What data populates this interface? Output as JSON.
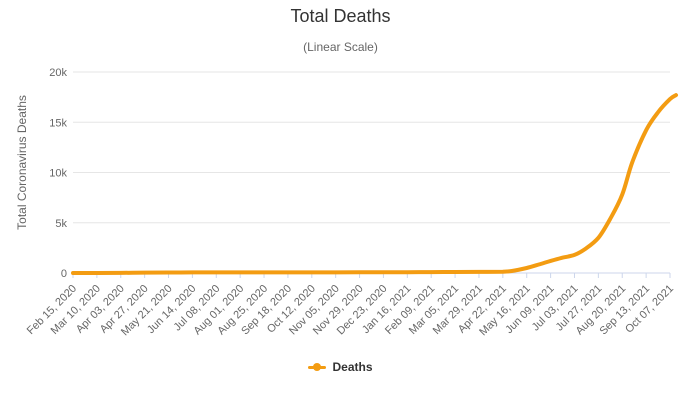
{
  "chart_data": {
    "type": "line",
    "title": "Total Deaths",
    "subtitle": "(Linear Scale)",
    "ylabel": "Total Coronavirus Deaths",
    "xlabel": "",
    "ylim": [
      0,
      20000
    ],
    "y_ticks": [
      "0",
      "5k",
      "10k",
      "15k",
      "20k"
    ],
    "y_tick_values": [
      0,
      5000,
      10000,
      15000,
      20000
    ],
    "categories": [
      "Feb 15, 2020",
      "Mar 10, 2020",
      "Apr 03, 2020",
      "Apr 27, 2020",
      "May 21, 2020",
      "Jun 14, 2020",
      "Jul 08, 2020",
      "Aug 01, 2020",
      "Aug 25, 2020",
      "Sep 18, 2020",
      "Oct 12, 2020",
      "Nov 05, 2020",
      "Nov 29, 2020",
      "Dec 23, 2020",
      "Jan 16, 2021",
      "Feb 09, 2021",
      "Mar 05, 2021",
      "Mar 29, 2021",
      "Apr 22, 2021",
      "May 16, 2021",
      "Jun 09, 2021",
      "Jul 03, 2021",
      "Jul 27, 2021",
      "Aug 20, 2021",
      "Sep 13, 2021",
      "Oct 07, 2021"
    ],
    "grid": true,
    "legend_position": "bottom-center",
    "series": [
      {
        "name": "Deaths",
        "color": "#f39c12",
        "points": [
          [
            "Feb 15, 2020",
            0
          ],
          [
            "Mar 10, 2020",
            0
          ],
          [
            "Apr 03, 2020",
            10
          ],
          [
            "Apr 27, 2020",
            40
          ],
          [
            "May 21, 2020",
            50
          ],
          [
            "Jun 14, 2020",
            55
          ],
          [
            "Jul 08, 2020",
            58
          ],
          [
            "Aug 01, 2020",
            60
          ],
          [
            "Aug 25, 2020",
            60
          ],
          [
            "Sep 18, 2020",
            60
          ],
          [
            "Oct 12, 2020",
            60
          ],
          [
            "Nov 05, 2020",
            62
          ],
          [
            "Nov 29, 2020",
            65
          ],
          [
            "Dec 23, 2020",
            70
          ],
          [
            "Jan 16, 2021",
            80
          ],
          [
            "Feb 09, 2021",
            90
          ],
          [
            "Mar 05, 2021",
            100
          ],
          [
            "Mar 29, 2021",
            110
          ],
          [
            "Apr 22, 2021",
            130
          ],
          [
            "May 01, 2021",
            200
          ],
          [
            "May 16, 2021",
            500
          ],
          [
            "May 30, 2021",
            900
          ],
          [
            "Jun 09, 2021",
            1200
          ],
          [
            "Jun 20, 2021",
            1500
          ],
          [
            "Jul 03, 2021",
            1800
          ],
          [
            "Jul 14, 2021",
            2400
          ],
          [
            "Jul 27, 2021",
            3500
          ],
          [
            "Aug 08, 2021",
            5400
          ],
          [
            "Aug 20, 2021",
            7800
          ],
          [
            "Aug 30, 2021",
            11000
          ],
          [
            "Sep 13, 2021",
            14200
          ],
          [
            "Sep 25, 2021",
            16000
          ],
          [
            "Oct 07, 2021",
            17300
          ],
          [
            "Oct 13, 2021",
            17700
          ]
        ]
      }
    ]
  }
}
